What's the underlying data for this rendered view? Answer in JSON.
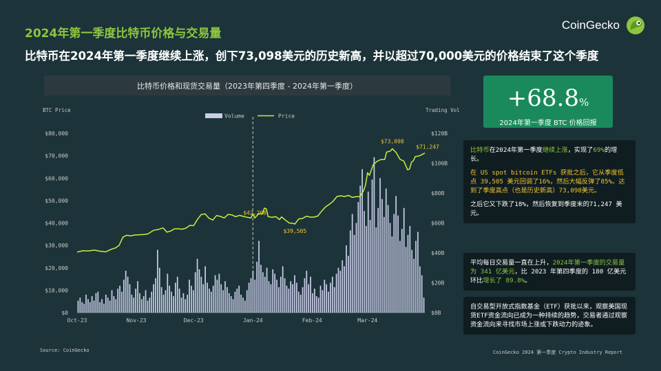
{
  "kicker": "2024年第一季度比特币价格与交易量",
  "headline": "比特币在2024年第一季度继续上涨，创下73,098美元的历史新高，并以超过70,000美元的价格结束了这个季度",
  "brand": {
    "name": "CoinGecko",
    "logo_icon": "gecko-icon"
  },
  "chart_title": "比特币价格和现货交易量（2023年第四季度 - 2024年第一季度）",
  "stat": {
    "value": "+68.8",
    "unit": "%",
    "label": "2024年第一季度 BTC 价格回报"
  },
  "notes": [
    [
      [
        [
          "比特币",
          "hl"
        ],
        [
          "在2024年第一季度",
          ""
        ],
        [
          "继续上涨",
          "hl"
        ],
        [
          "，实现了",
          ""
        ],
        [
          "69%",
          "hl"
        ],
        [
          "的增长。",
          ""
        ]
      ],
      [
        [
          "在 US spot bitcoin ETFs 获批之后，它从季度低点 39,505 美元回调了16%，然后大幅反弹了85%。达到了季度高点（也是历史新高）73,098美元。",
          "hly"
        ]
      ],
      [
        [
          "之后它又下跌了18%，然后恢复到季度末的71,247 美元。",
          ""
        ]
      ]
    ],
    [
      [
        [
          "平均每日交易量一直在上升，",
          ""
        ],
        [
          "2024年第一季度的交易量为 341 亿美元",
          "hl"
        ],
        [
          "，比 2023 年第四季度的 180 亿美元环比",
          ""
        ],
        [
          "增长了 89.8%",
          "hl"
        ],
        [
          "。",
          ""
        ]
      ]
    ],
    [
      [
        [
          "自交易型开放式指数基金（ETF）获批以来，观察美国现货ETF资金流向已成为一种持续的趋势，交易者通过观察资金流向来寻找市场上涨或下跌动力的迹象。",
          ""
        ]
      ]
    ]
  ],
  "footer_source": "Source: CoinGecko",
  "footer_report": "CoinGecko 2024 第一季度 Crypto Industry Report",
  "colors": {
    "background": "#1c3439",
    "price_line": "#c8f03c",
    "volume_bar": "#c9cde8",
    "accent_green": "#8dc63f",
    "annotation": "#f4c430",
    "stat_card": "#1a8a5c"
  },
  "chart_data": {
    "type": "bar+line",
    "left_axis_label": "BTC Price",
    "right_axis_label": "Trading Vol",
    "left_ticks": [
      "$0",
      "$10,000",
      "$20,000",
      "$30,000",
      "$40,000",
      "$50,000",
      "$60,000",
      "$70,000",
      "$80,000"
    ],
    "right_ticks": [
      "$0B",
      "$20B",
      "$40B",
      "$60B",
      "$80B",
      "$100B",
      "$120B"
    ],
    "ylim_price": [
      0,
      80000
    ],
    "ylim_volume": [
      0,
      120
    ],
    "x_labels": [
      "Oct-23",
      "Nov-23",
      "Dec-23",
      "Jan-24",
      "Feb-24",
      "Mar-24"
    ],
    "x_label_days": [
      0,
      31,
      61,
      92,
      123,
      152
    ],
    "x_range_days": [
      0,
      182
    ],
    "legend": [
      {
        "name": "Volume",
        "kind": "bar"
      },
      {
        "name": "Price",
        "kind": "line"
      }
    ],
    "legend_position": "top-center",
    "grid": false,
    "vline_day": 92,
    "annotations": [
      {
        "text": "$42,208",
        "day": 93,
        "value": 42208
      },
      {
        "text": "$39,505",
        "day": 114,
        "value": 39505
      },
      {
        "text": "$73,098",
        "day": 165,
        "value": 73098
      },
      {
        "text": "$71,247",
        "day": 182,
        "value": 71247
      }
    ],
    "price": [
      [
        0,
        27000
      ],
      [
        3,
        27600
      ],
      [
        6,
        27500
      ],
      [
        9,
        27900
      ],
      [
        12,
        27400
      ],
      [
        15,
        27100
      ],
      [
        18,
        28300
      ],
      [
        20,
        28800
      ],
      [
        22,
        30000
      ],
      [
        24,
        33700
      ],
      [
        26,
        34500
      ],
      [
        28,
        34200
      ],
      [
        30,
        34600
      ],
      [
        32,
        34700
      ],
      [
        34,
        34800
      ],
      [
        37,
        35100
      ],
      [
        40,
        36700
      ],
      [
        43,
        37200
      ],
      [
        45,
        37800
      ],
      [
        47,
        35900
      ],
      [
        49,
        36400
      ],
      [
        51,
        37400
      ],
      [
        53,
        37400
      ],
      [
        55,
        37200
      ],
      [
        57,
        37700
      ],
      [
        59,
        38900
      ],
      [
        61,
        38800
      ],
      [
        63,
        41600
      ],
      [
        65,
        43800
      ],
      [
        67,
        44000
      ],
      [
        69,
        42100
      ],
      [
        71,
        41300
      ],
      [
        73,
        43300
      ],
      [
        75,
        42900
      ],
      [
        77,
        42200
      ],
      [
        79,
        43800
      ],
      [
        81,
        43600
      ],
      [
        83,
        42800
      ],
      [
        85,
        43400
      ],
      [
        87,
        42900
      ],
      [
        89,
        42500
      ],
      [
        91,
        42200
      ],
      [
        92,
        44100
      ],
      [
        93,
        42208
      ],
      [
        95,
        44100
      ],
      [
        97,
        44000
      ],
      [
        98,
        46600
      ],
      [
        99,
        46300
      ],
      [
        100,
        42800
      ],
      [
        102,
        42500
      ],
      [
        104,
        42800
      ],
      [
        106,
        41500
      ],
      [
        107,
        42700
      ],
      [
        109,
        41300
      ],
      [
        111,
        40000
      ],
      [
        113,
        39800
      ],
      [
        114,
        39505
      ],
      [
        116,
        41800
      ],
      [
        118,
        42000
      ],
      [
        120,
        43000
      ],
      [
        122,
        42600
      ],
      [
        124,
        42600
      ],
      [
        126,
        43100
      ],
      [
        128,
        45300
      ],
      [
        130,
        47100
      ],
      [
        132,
        48300
      ],
      [
        134,
        49700
      ],
      [
        136,
        51800
      ],
      [
        138,
        52100
      ],
      [
        140,
        51800
      ],
      [
        142,
        52300
      ],
      [
        144,
        51400
      ],
      [
        146,
        51700
      ],
      [
        148,
        51700
      ],
      [
        150,
        54500
      ],
      [
        151,
        57100
      ],
      [
        152,
        62400
      ],
      [
        153,
        61200
      ],
      [
        155,
        66000
      ],
      [
        157,
        67500
      ],
      [
        159,
        68300
      ],
      [
        161,
        68300
      ],
      [
        162,
        71600
      ],
      [
        164,
        72100
      ],
      [
        165,
        73098
      ],
      [
        167,
        71400
      ],
      [
        169,
        68400
      ],
      [
        171,
        67600
      ],
      [
        173,
        63700
      ],
      [
        174,
        64100
      ],
      [
        175,
        67100
      ],
      [
        176,
        67800
      ],
      [
        177,
        69600
      ],
      [
        179,
        69900
      ],
      [
        181,
        70700
      ],
      [
        182,
        71247
      ]
    ],
    "volume_billion": [
      8,
      10,
      7,
      6,
      12,
      9,
      7,
      11,
      8,
      13,
      14,
      7,
      9,
      6,
      12,
      10,
      8,
      15,
      11,
      9,
      16,
      18,
      14,
      22,
      28,
      24,
      19,
      12,
      10,
      16,
      21,
      13,
      9,
      11,
      15,
      8,
      10,
      14,
      19,
      23,
      42,
      30,
      17,
      12,
      15,
      26,
      18,
      14,
      11,
      20,
      24,
      16,
      10,
      13,
      9,
      12,
      22,
      18,
      15,
      27,
      36,
      29,
      24,
      19,
      31,
      20,
      16,
      14,
      18,
      25,
      22,
      26,
      19,
      15,
      21,
      17,
      13,
      11,
      9,
      14,
      16,
      18,
      12,
      10,
      8,
      15,
      20,
      23,
      28,
      22,
      34,
      48,
      32,
      27,
      24,
      30,
      21,
      19,
      29,
      26,
      22,
      17,
      24,
      31,
      23,
      18,
      16,
      21,
      19,
      25,
      20,
      14,
      12,
      17,
      23,
      28,
      19,
      24,
      13,
      16,
      11,
      10,
      18,
      15,
      22,
      19,
      14,
      20,
      24,
      17,
      26,
      30,
      28,
      35,
      31,
      45,
      38,
      55,
      66,
      52,
      60,
      74,
      85,
      96,
      68,
      58,
      81,
      62,
      89,
      104,
      57,
      70,
      90,
      76,
      64,
      83,
      72,
      60,
      51,
      66,
      78,
      65,
      48,
      56,
      70,
      44,
      52,
      58,
      42,
      36,
      48,
      54,
      31,
      25,
      10
    ]
  }
}
